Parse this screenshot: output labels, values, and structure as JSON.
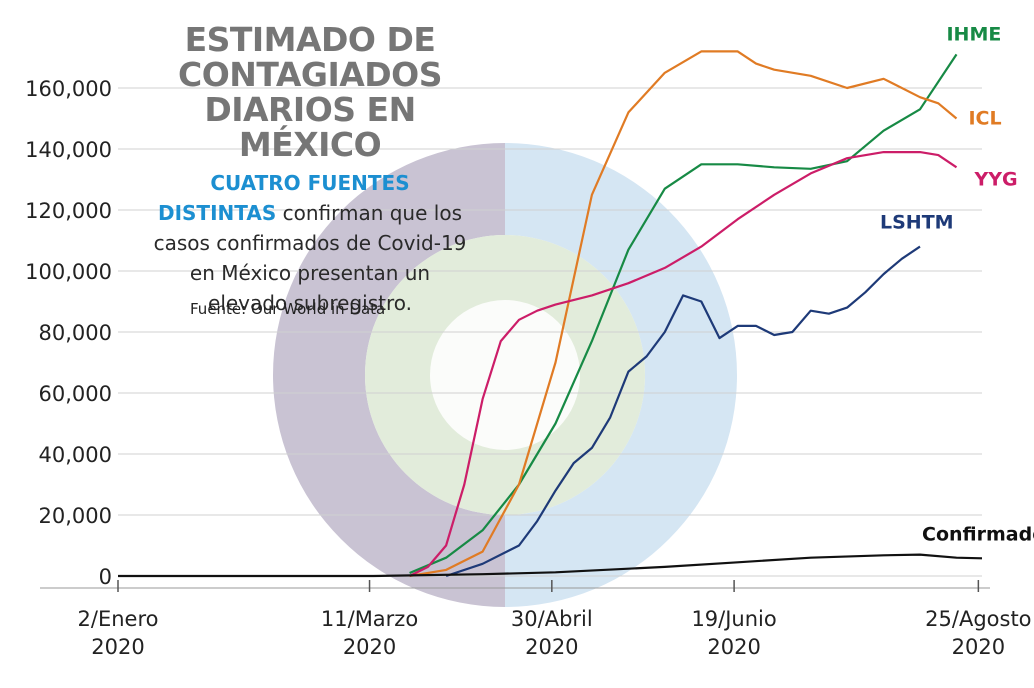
{
  "title_lines": [
    "ESTIMADO DE",
    "CONTAGIADOS",
    "DIARIOS EN MÉXICO"
  ],
  "subtitle": {
    "highlight": "CUATRO FUENTES DISTINTAS",
    "rest": " confirman que los casos confirmados de Covid-19 en México presentan un elevado subregistro."
  },
  "source": "Fuente: Our World in Data",
  "colors": {
    "IHME": "#178a45",
    "ICL": "#e07b24",
    "YYG": "#cc1d68",
    "LSHTM": "#1e3a78",
    "Confirmados": "#111111",
    "logo_gray": "#c9c3d3",
    "logo_blue": "#d5e6f3",
    "logo_green": "#dfead7"
  },
  "chart_data": {
    "type": "line",
    "title": "ESTIMADO DE CONTAGIADOS DIARIOS EN MÉXICO",
    "xlabel": "",
    "ylabel": "",
    "x_ticks": [
      {
        "day": 0,
        "label": [
          "2/Enero",
          "2020"
        ]
      },
      {
        "day": 69,
        "label": [
          "11/Marzo",
          "2020"
        ]
      },
      {
        "day": 119,
        "label": [
          "30/Abril",
          "2020"
        ]
      },
      {
        "day": 169,
        "label": [
          "19/Junio",
          "2020"
        ]
      },
      {
        "day": 236,
        "label": [
          "25/Agosto",
          "2020"
        ]
      }
    ],
    "y_ticks": [
      {
        "value": 0,
        "label": "0"
      },
      {
        "value": 20000,
        "label": "20,000"
      },
      {
        "value": 40000,
        "label": "40,000"
      },
      {
        "value": 60000,
        "label": "60,000"
      },
      {
        "value": 80000,
        "label": "80,000"
      },
      {
        "value": 100000,
        "label": "100,000"
      },
      {
        "value": 120000,
        "label": "120,000"
      },
      {
        "value": 140000,
        "label": "140,000"
      },
      {
        "value": 160000,
        "label": "160,000"
      }
    ],
    "xlim": [
      0,
      237
    ],
    "ylim": [
      0,
      160000
    ],
    "grid": true,
    "series": [
      {
        "name": "IHME",
        "x": [
          80,
          90,
          100,
          110,
          120,
          130,
          140,
          150,
          160,
          165,
          170,
          180,
          190,
          200,
          210,
          220,
          230
        ],
        "y": [
          1000,
          6000,
          15000,
          30000,
          50000,
          77000,
          107000,
          127000,
          135000,
          135000,
          135000,
          134000,
          133500,
          136000,
          146000,
          153000,
          171000
        ]
      },
      {
        "name": "ICL",
        "x": [
          80,
          90,
          100,
          110,
          120,
          130,
          140,
          150,
          160,
          170,
          175,
          180,
          190,
          200,
          210,
          220,
          225,
          230
        ],
        "y": [
          0,
          2000,
          8000,
          30000,
          70000,
          125000,
          152000,
          165000,
          172000,
          172000,
          168000,
          166000,
          164000,
          160000,
          163000,
          157000,
          155000,
          150000
        ]
      },
      {
        "name": "YYG",
        "x": [
          80,
          85,
          90,
          95,
          100,
          105,
          110,
          115,
          120,
          130,
          140,
          150,
          160,
          170,
          180,
          190,
          200,
          210,
          220,
          225,
          230
        ],
        "y": [
          0,
          3000,
          10000,
          30000,
          58000,
          77000,
          84000,
          87000,
          89000,
          92000,
          96000,
          101000,
          108000,
          117000,
          125000,
          132000,
          137000,
          139000,
          139000,
          138000,
          134000
        ]
      },
      {
        "name": "LSHTM",
        "x": [
          90,
          100,
          110,
          115,
          120,
          125,
          130,
          135,
          140,
          145,
          150,
          155,
          160,
          165,
          170,
          175,
          180,
          185,
          190,
          195,
          200,
          205,
          210,
          215,
          220
        ],
        "y": [
          0,
          4000,
          10000,
          18000,
          28000,
          37000,
          42000,
          52000,
          67000,
          72000,
          80000,
          92000,
          90000,
          78000,
          82000,
          82000,
          79000,
          80000,
          87000,
          86000,
          88000,
          93000,
          99000,
          104000,
          108000
        ]
      },
      {
        "name": "Confirmados",
        "x": [
          0,
          70,
          100,
          120,
          150,
          170,
          190,
          210,
          220,
          230,
          237
        ],
        "y": [
          0,
          0,
          600,
          1200,
          3000,
          4500,
          6000,
          6800,
          7000,
          6000,
          5800
        ]
      }
    ]
  }
}
